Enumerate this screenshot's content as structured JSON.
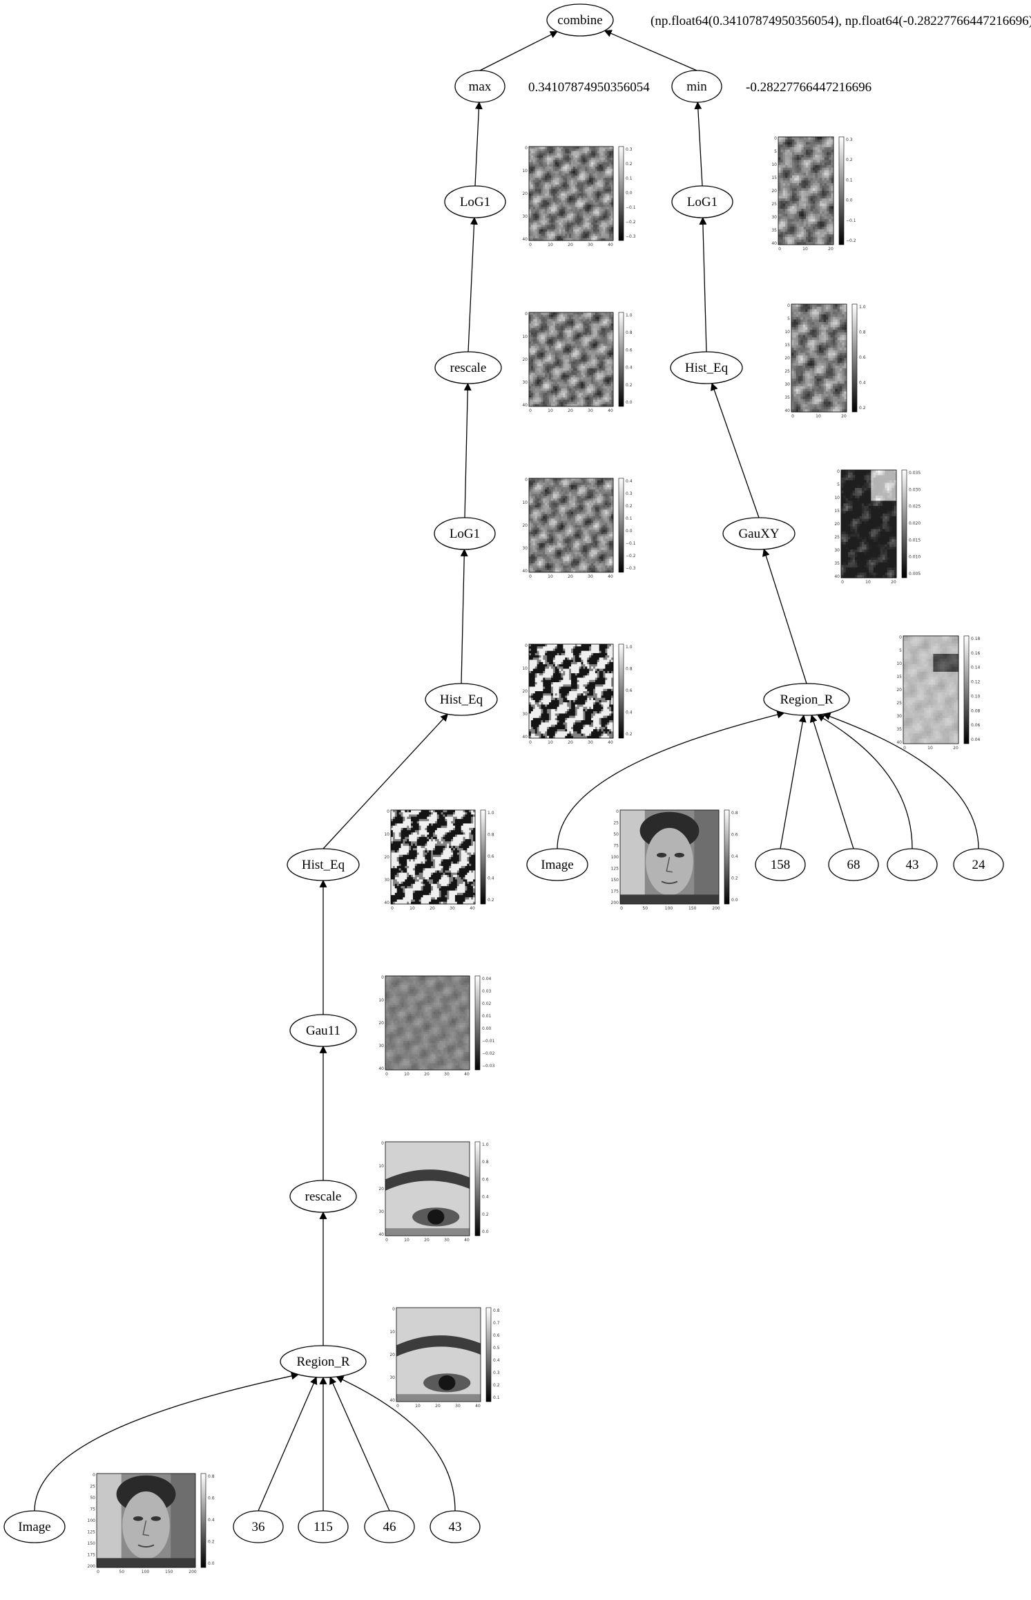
{
  "diagram": {
    "nodes": [
      {
        "id": "combine",
        "label": "combine"
      },
      {
        "id": "max",
        "label": "max"
      },
      {
        "id": "min",
        "label": "min"
      },
      {
        "id": "log1_a",
        "label": "LoG1"
      },
      {
        "id": "log1_b",
        "label": "LoG1"
      },
      {
        "id": "rescale_a",
        "label": "rescale"
      },
      {
        "id": "histeq_r",
        "label": "Hist_Eq"
      },
      {
        "id": "log1_c",
        "label": "LoG1"
      },
      {
        "id": "gauxy",
        "label": "GauXY"
      },
      {
        "id": "histeq_a",
        "label": "Hist_Eq"
      },
      {
        "id": "region_r2",
        "label": "Region_R"
      },
      {
        "id": "histeq_b",
        "label": "Hist_Eq"
      },
      {
        "id": "image2",
        "label": "Image"
      },
      {
        "id": "n158",
        "label": "158"
      },
      {
        "id": "n68",
        "label": "68"
      },
      {
        "id": "n43b",
        "label": "43"
      },
      {
        "id": "n24",
        "label": "24"
      },
      {
        "id": "gau11",
        "label": "Gau11"
      },
      {
        "id": "rescale_b",
        "label": "rescale"
      },
      {
        "id": "region_r1",
        "label": "Region_R"
      },
      {
        "id": "image1",
        "label": "Image"
      },
      {
        "id": "n36",
        "label": "36"
      },
      {
        "id": "n115",
        "label": "115"
      },
      {
        "id": "n46",
        "label": "46"
      },
      {
        "id": "n43a",
        "label": "43"
      }
    ],
    "values": {
      "combine": "(np.float64(0.34107874950356054), np.float64(-0.28227766447216696))",
      "max": "0.34107874950356054",
      "min": "-0.28227766447216696"
    },
    "thumbnails": [
      {
        "id": "t_log1_a",
        "node": "log1_a",
        "kind": "texture",
        "seed": 11,
        "xticks": [
          "0",
          "10",
          "20",
          "30",
          "40"
        ],
        "yticks": [
          "0",
          "10",
          "20",
          "30",
          "40"
        ],
        "cbar": [
          "0.3",
          "0.2",
          "0.1",
          "0.0",
          "−0.1",
          "−0.2",
          "−0.3"
        ]
      },
      {
        "id": "t_log1_b",
        "node": "log1_b",
        "kind": "texture",
        "seed": 21,
        "xticks": [
          "0",
          "10",
          "20"
        ],
        "yticks": [
          "0",
          "5",
          "10",
          "15",
          "20",
          "25",
          "30",
          "35",
          "40"
        ],
        "cbar": [
          "0.3",
          "0.2",
          "0.1",
          "0.0",
          "−0.1",
          "−0.2"
        ]
      },
      {
        "id": "t_rescale_a",
        "node": "rescale_a",
        "kind": "texture",
        "seed": 12,
        "xticks": [
          "0",
          "10",
          "20",
          "30",
          "40"
        ],
        "yticks": [
          "0",
          "10",
          "20",
          "30",
          "40"
        ],
        "cbar": [
          "1.0",
          "0.8",
          "0.6",
          "0.4",
          "0.2",
          "0.0"
        ]
      },
      {
        "id": "t_histeq_r",
        "node": "histeq_r",
        "kind": "texture",
        "seed": 22,
        "xticks": [
          "0",
          "10",
          "20"
        ],
        "yticks": [
          "0",
          "5",
          "10",
          "15",
          "20",
          "25",
          "30",
          "35",
          "40"
        ],
        "cbar": [
          "1.0",
          "0.8",
          "0.6",
          "0.4",
          "0.2"
        ]
      },
      {
        "id": "t_log1_c",
        "node": "log1_c",
        "kind": "texture",
        "seed": 13,
        "xticks": [
          "0",
          "10",
          "20",
          "30",
          "40"
        ],
        "yticks": [
          "0",
          "10",
          "20",
          "30",
          "40"
        ],
        "cbar": [
          "0.4",
          "0.3",
          "0.2",
          "0.1",
          "0.0",
          "−0.1",
          "−0.2",
          "−0.3"
        ]
      },
      {
        "id": "t_gauxy",
        "node": "gauxy",
        "kind": "dark",
        "seed": 23,
        "xticks": [
          "0",
          "10",
          "20"
        ],
        "yticks": [
          "0",
          "5",
          "10",
          "15",
          "20",
          "25",
          "30",
          "35",
          "40"
        ],
        "cbar": [
          "0.035",
          "0.030",
          "0.025",
          "0.020",
          "0.015",
          "0.010",
          "0.005"
        ]
      },
      {
        "id": "t_histeq_a",
        "node": "histeq_a",
        "kind": "contrast",
        "seed": 14,
        "xticks": [
          "0",
          "10",
          "20",
          "30",
          "40"
        ],
        "yticks": [
          "0",
          "10",
          "20",
          "30",
          "40"
        ],
        "cbar": [
          "1.0",
          "0.8",
          "0.6",
          "0.4",
          "0.2"
        ]
      },
      {
        "id": "t_region_r2",
        "node": "region_r2",
        "kind": "light",
        "seed": 24,
        "xticks": [
          "0",
          "10",
          "20"
        ],
        "yticks": [
          "0",
          "5",
          "10",
          "15",
          "20",
          "25",
          "30",
          "35",
          "40"
        ],
        "cbar": [
          "0.18",
          "0.16",
          "0.14",
          "0.12",
          "0.10",
          "0.08",
          "0.06",
          "0.04"
        ]
      },
      {
        "id": "t_histeq_b",
        "node": "histeq_b",
        "kind": "contrast",
        "seed": 15,
        "xticks": [
          "0",
          "10",
          "20",
          "30",
          "40"
        ],
        "yticks": [
          "0",
          "10",
          "20",
          "30",
          "40"
        ],
        "cbar": [
          "1.0",
          "0.8",
          "0.6",
          "0.4",
          "0.2"
        ]
      },
      {
        "id": "t_image2",
        "node": "image2",
        "kind": "face",
        "seed": 25,
        "xticks": [
          "0",
          "50",
          "100",
          "150",
          "200"
        ],
        "yticks": [
          "0",
          "25",
          "50",
          "75",
          "100",
          "125",
          "150",
          "175",
          "200"
        ],
        "cbar": [
          "0.8",
          "0.6",
          "0.4",
          "0.2",
          "0.0"
        ]
      },
      {
        "id": "t_gau11",
        "node": "gau11",
        "kind": "gray",
        "seed": 16,
        "xticks": [
          "0",
          "10",
          "20",
          "30",
          "40"
        ],
        "yticks": [
          "0",
          "10",
          "20",
          "30",
          "40"
        ],
        "cbar": [
          "0.04",
          "0.03",
          "0.02",
          "0.01",
          "0.00",
          "−0.01",
          "−0.02",
          "−0.03"
        ]
      },
      {
        "id": "t_rescale_b",
        "node": "rescale_b",
        "kind": "eye",
        "seed": 17,
        "xticks": [
          "0",
          "10",
          "20",
          "30",
          "40"
        ],
        "yticks": [
          "0",
          "10",
          "20",
          "30",
          "40"
        ],
        "cbar": [
          "1.0",
          "0.8",
          "0.6",
          "0.4",
          "0.2",
          "0.0"
        ]
      },
      {
        "id": "t_region_r1",
        "node": "region_r1",
        "kind": "eye",
        "seed": 18,
        "xticks": [
          "0",
          "10",
          "20",
          "30",
          "40"
        ],
        "yticks": [
          "0",
          "10",
          "20",
          "30",
          "40"
        ],
        "cbar": [
          "0.8",
          "0.7",
          "0.6",
          "0.5",
          "0.4",
          "0.3",
          "0.2",
          "0.1"
        ]
      },
      {
        "id": "t_image1",
        "node": "image1",
        "kind": "face",
        "seed": 19,
        "xticks": [
          "0",
          "50",
          "100",
          "150",
          "200"
        ],
        "yticks": [
          "0",
          "25",
          "50",
          "75",
          "100",
          "125",
          "150",
          "175",
          "200"
        ],
        "cbar": [
          "0.8",
          "0.6",
          "0.4",
          "0.2",
          "0.0"
        ]
      }
    ]
  }
}
